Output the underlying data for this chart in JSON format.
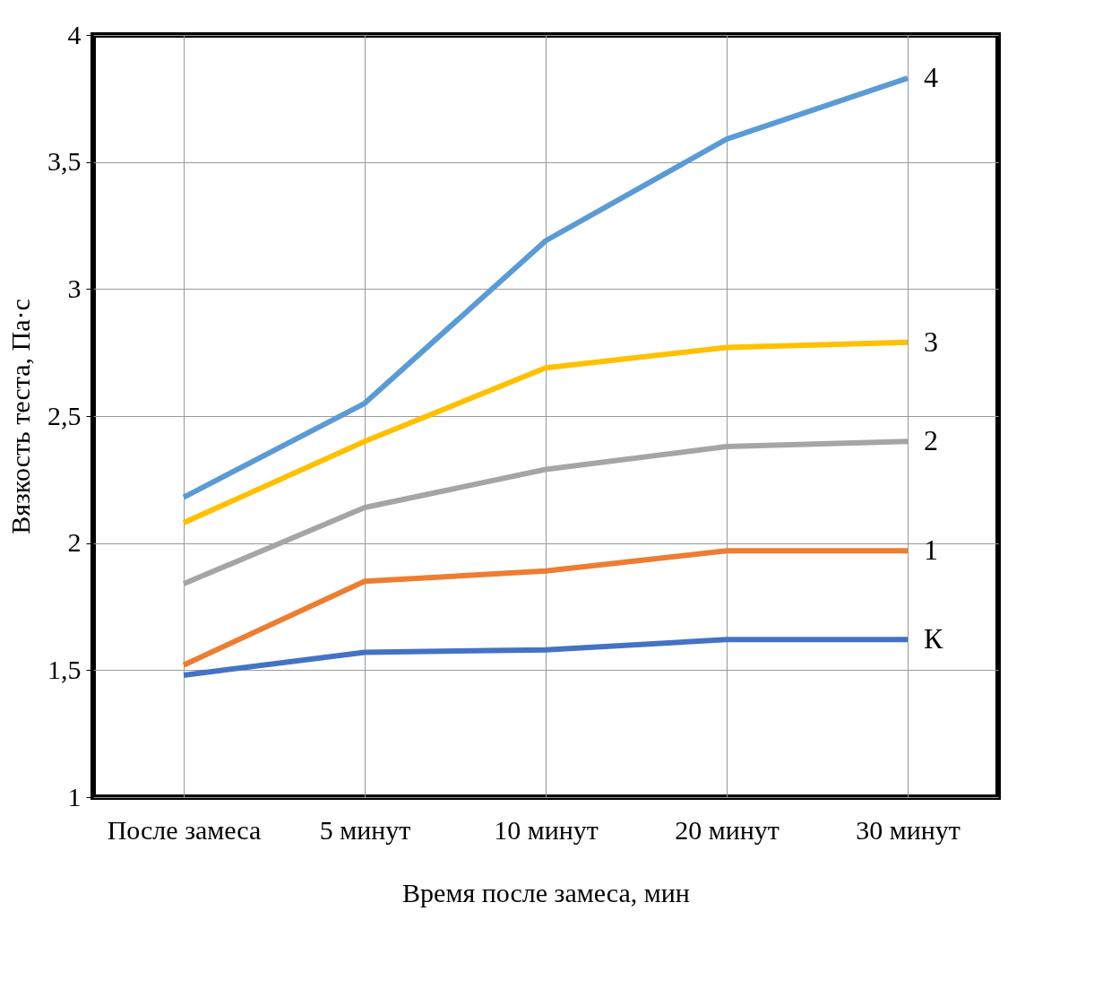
{
  "chart_data": {
    "type": "line",
    "xlabel": "Время после замеса, мин",
    "ylabel": "Вязкость теста, Па·с",
    "categories": [
      "После замеса",
      "5 минут",
      "10 минут",
      "20 минут",
      "30 минут"
    ],
    "series": [
      {
        "name": "4",
        "color": "#5b9bd5",
        "values": [
          2.18,
          2.55,
          3.19,
          3.59,
          3.83
        ]
      },
      {
        "name": "3",
        "color": "#ffc000",
        "values": [
          2.08,
          2.4,
          2.69,
          2.77,
          2.79
        ]
      },
      {
        "name": "2",
        "color": "#a5a5a5",
        "values": [
          1.84,
          2.14,
          2.29,
          2.38,
          2.4
        ]
      },
      {
        "name": "1",
        "color": "#ed7d31",
        "values": [
          1.52,
          1.85,
          1.89,
          1.97,
          1.97
        ]
      },
      {
        "name": "К",
        "color": "#4472c4",
        "values": [
          1.48,
          1.57,
          1.58,
          1.62,
          1.62
        ]
      }
    ],
    "ylim": [
      1,
      4
    ],
    "yticks": [
      1,
      {
        "value": 1.5,
        "label": "1,5"
      },
      2,
      {
        "value": 2.5,
        "label": "2,5"
      },
      3,
      {
        "value": 3.5,
        "label": "3,5"
      },
      4
    ],
    "grid": true,
    "legend": false,
    "marker": "none",
    "line_style": "solid"
  }
}
